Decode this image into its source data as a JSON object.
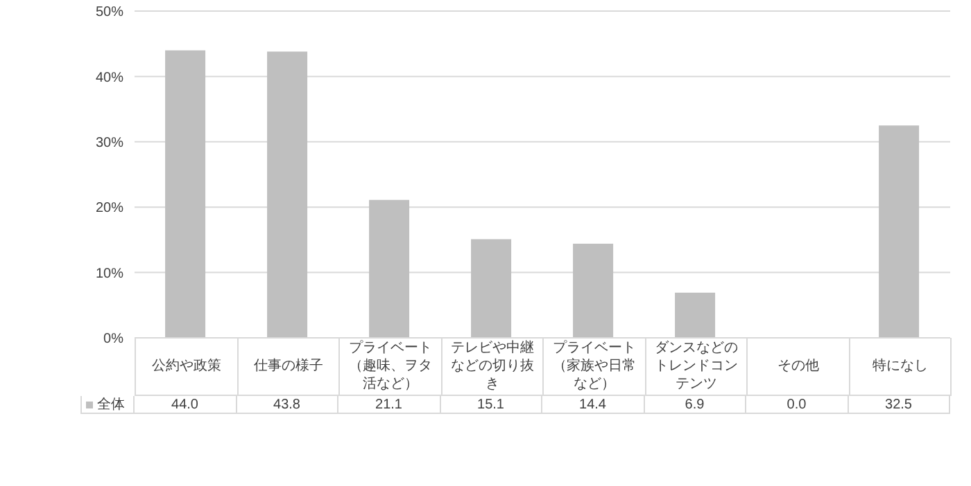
{
  "chart_data": {
    "type": "bar",
    "categories": [
      "公約や政策",
      "仕事の様子",
      "プライベート（趣味、ヲタ活など）",
      "テレビや中継などの切り抜き",
      "プライベート（家族や日常など）",
      "ダンスなどのトレンドコンテンツ",
      "その他",
      "特になし"
    ],
    "series": [
      {
        "name": "全体",
        "color": "#bfbfbf",
        "values": [
          44.0,
          43.8,
          21.1,
          15.1,
          14.4,
          6.9,
          0.0,
          32.5
        ],
        "value_labels": [
          "44.0",
          "43.8",
          "21.1",
          "15.1",
          "14.4",
          "6.9",
          "0.0",
          "32.5"
        ]
      }
    ],
    "ylim": [
      0,
      50
    ],
    "yticks": [
      {
        "value": 0,
        "label": "0%"
      },
      {
        "value": 10,
        "label": "10%"
      },
      {
        "value": 20,
        "label": "20%"
      },
      {
        "value": 30,
        "label": "30%"
      },
      {
        "value": 40,
        "label": "40%"
      },
      {
        "value": 50,
        "label": "50%"
      }
    ],
    "grid": "y",
    "legend": "bottom left"
  }
}
